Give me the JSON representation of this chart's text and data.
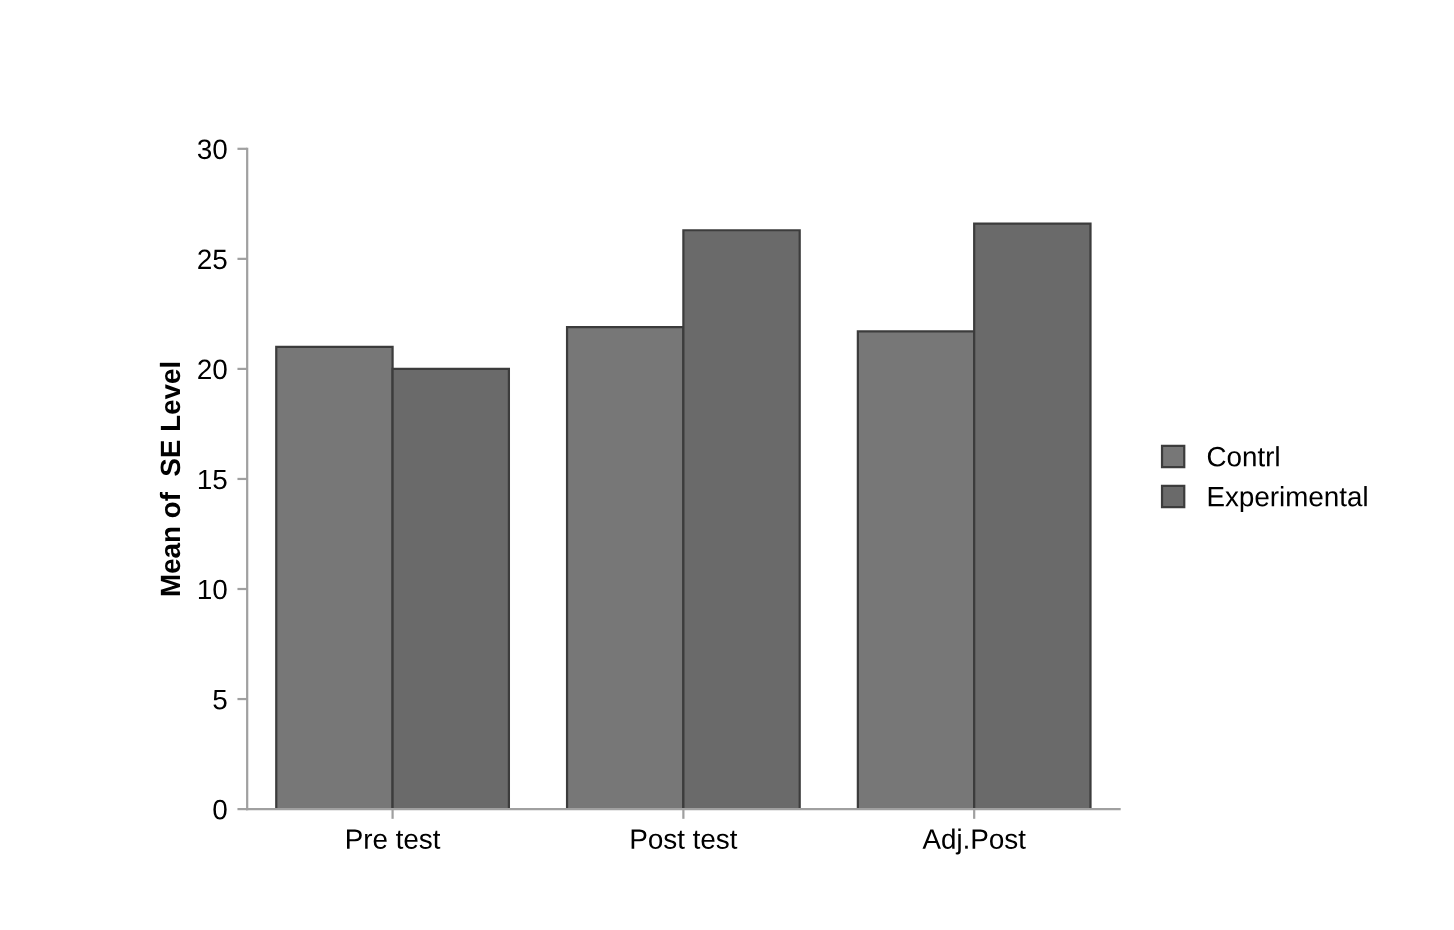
{
  "chart_data": {
    "type": "bar",
    "ylabel": "Mean of  SE Level",
    "categories": [
      "Pre test",
      "Post test",
      "Adj.Post"
    ],
    "series": [
      {
        "name": "Contrl",
        "color": "#777777",
        "values": [
          21.0,
          21.9,
          21.7
        ]
      },
      {
        "name": "Experimental",
        "color": "#6a6a6a",
        "values": [
          20.0,
          26.3,
          26.6
        ]
      }
    ],
    "ylim": [
      0,
      30
    ],
    "yticks": [
      0,
      5,
      10,
      15,
      20,
      25,
      30
    ],
    "grid": false,
    "legend": "right"
  }
}
